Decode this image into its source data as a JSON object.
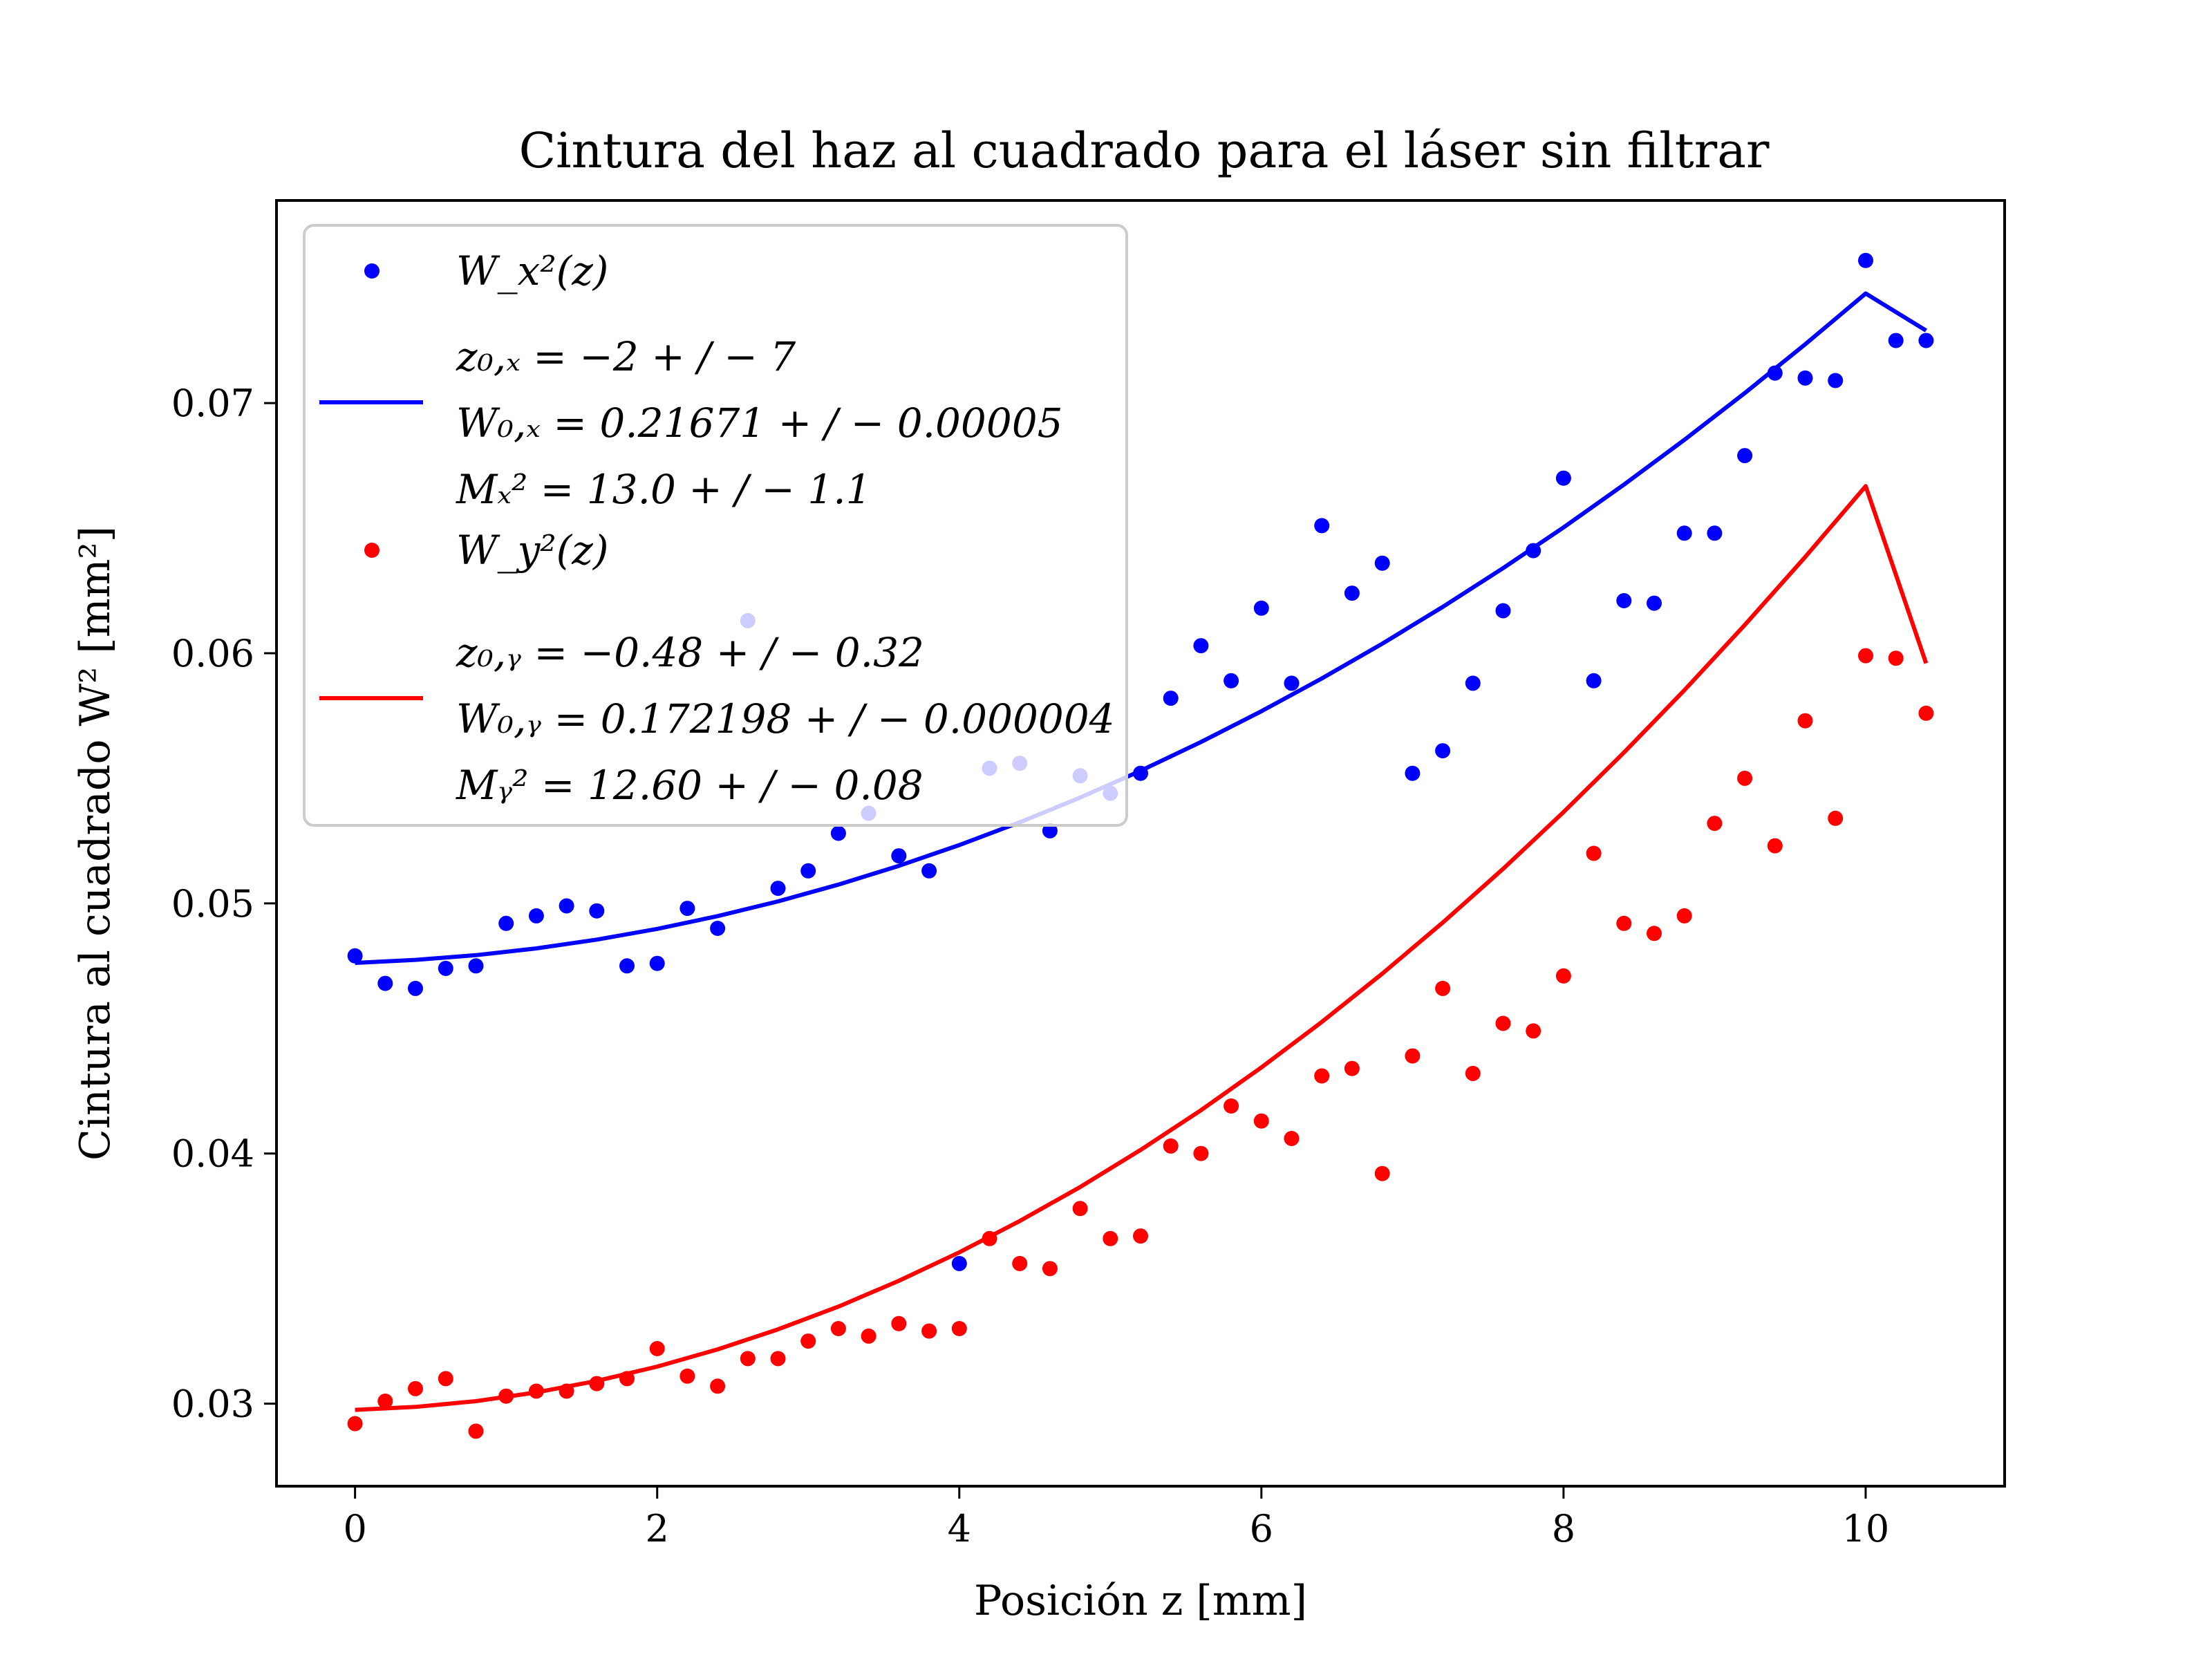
{
  "chart_data": {
    "type": "scatter",
    "title": "Cintura del haz al cuadrado para el láser sin filtrar",
    "xlabel": "Posición z [mm]",
    "ylabel": "Cintura al cuadrado W² [mm²]",
    "xlim": [
      -0.52,
      10.92
    ],
    "ylim": [
      0.0267,
      0.0781
    ],
    "xticks": [
      0,
      2,
      4,
      6,
      8,
      10
    ],
    "xtick_labels": [
      "0",
      "2",
      "4",
      "6",
      "8",
      "10"
    ],
    "yticks": [
      0.03,
      0.04,
      0.05,
      0.06,
      0.07
    ],
    "ytick_labels": [
      "0.03",
      "0.04",
      "0.05",
      "0.06",
      "0.07"
    ],
    "grid": false,
    "legend_position": "upper-left",
    "legend": [
      {
        "kind": "marker",
        "color": "#0000ff",
        "text": "W_x²(z)"
      },
      {
        "kind": "line",
        "color": "#0000ff",
        "lines": [
          "z₀,ₓ = −2 + / − 7",
          "W₀,ₓ = 0.21671 + / − 0.00005",
          "Mₓ² = 13.0 + / − 1.1"
        ]
      },
      {
        "kind": "marker",
        "color": "#ff0000",
        "text": "W_y²(z)"
      },
      {
        "kind": "line",
        "color": "#ff0000",
        "lines": [
          "z₀,ᵧ = −0.48 + / − 0.32",
          "W₀,ᵧ = 0.172198 + / − 0.000004",
          "Mᵧ² = 12.60 + / − 0.08"
        ]
      }
    ],
    "series": [
      {
        "kind": "points",
        "color": "#0000ff",
        "x": [
          0,
          0.2,
          0.4,
          0.6,
          0.8,
          1.0,
          1.2,
          1.4,
          1.6,
          1.8,
          2.0,
          2.2,
          2.4,
          2.6,
          2.8,
          3.0,
          3.2,
          3.4,
          3.6,
          3.8,
          4.2,
          4.4,
          4.6,
          4.8,
          5.0,
          5.2,
          5.4,
          5.6,
          5.8,
          6.0,
          6.2,
          6.4,
          6.6,
          6.8,
          7.0,
          7.2,
          7.4,
          7.6,
          7.8,
          8.0,
          8.2,
          8.4,
          8.6,
          8.8,
          9.0,
          9.2,
          9.4,
          9.6,
          9.8,
          10.0,
          10.2,
          10.4
        ],
        "y": [
          0.0479,
          0.0468,
          0.0466,
          0.0474,
          0.0475,
          0.0492,
          0.0495,
          0.0499,
          0.0497,
          0.0475,
          0.0476,
          0.0498,
          0.049,
          0.0613,
          0.0506,
          0.0513,
          0.0528,
          0.0536,
          0.0519,
          0.0513,
          0.0554,
          0.0556,
          0.0529,
          0.0551,
          0.0544,
          0.0552,
          0.0582,
          0.0603,
          0.0589,
          0.0618,
          0.0588,
          0.0651,
          0.0624,
          0.0636,
          0.0552,
          0.0561,
          0.0588,
          0.0617,
          0.0641,
          0.067,
          0.0589,
          0.0621,
          0.062,
          0.0648,
          0.0648,
          0.0679,
          0.0712,
          0.071,
          0.0709,
          0.0757,
          0.0725,
          0.0725
        ]
      },
      {
        "kind": "curve",
        "color": "#0000ff",
        "x": [
          0,
          0.4,
          0.8,
          1.2,
          1.6,
          2.0,
          2.4,
          2.8,
          3.2,
          3.6,
          4.0,
          4.4,
          4.8,
          5.2,
          5.6,
          6.0,
          6.4,
          6.8,
          7.2,
          7.6,
          8.0,
          8.4,
          8.8,
          9.2,
          9.6,
          10.0,
          10.4
        ],
        "y": [
          0.04762,
          0.04774,
          0.04793,
          0.0482,
          0.04855,
          0.04898,
          0.04949,
          0.05008,
          0.05075,
          0.0515,
          0.05233,
          0.05324,
          0.05423,
          0.0553,
          0.05645,
          0.05768,
          0.05899,
          0.06038,
          0.06185,
          0.0634,
          0.06503,
          0.06674,
          0.06853,
          0.0704,
          0.07235,
          0.07438,
          0.0729
        ]
      },
      {
        "kind": "points",
        "color": "#ff0000",
        "x": [
          0,
          0.2,
          0.4,
          0.6,
          0.8,
          1.0,
          1.2,
          1.4,
          1.6,
          1.8,
          2.0,
          2.2,
          2.4,
          2.6,
          2.8,
          3.0,
          3.2,
          3.4,
          3.6,
          3.8,
          4.0,
          4.2,
          4.4,
          4.6,
          4.8,
          5.0,
          5.2,
          5.4,
          5.6,
          5.8,
          6.0,
          6.2,
          6.4,
          6.6,
          6.8,
          7.0,
          7.2,
          7.4,
          7.6,
          7.8,
          8.0,
          8.2,
          8.4,
          8.6,
          8.8,
          9.0,
          9.2,
          9.4,
          9.6,
          9.8,
          10.0,
          10.2,
          10.4
        ],
        "y": [
          0.0292,
          0.0301,
          0.0306,
          0.031,
          0.0289,
          0.0303,
          0.0305,
          0.0305,
          0.0308,
          0.031,
          0.0322,
          0.0311,
          0.0307,
          0.0318,
          0.0318,
          0.0325,
          0.033,
          0.0327,
          0.0332,
          0.0329,
          0.033,
          0.0366,
          0.0356,
          0.0354,
          0.0378,
          0.0366,
          0.0367,
          0.0403,
          0.04,
          0.0419,
          0.0413,
          0.0406,
          0.0431,
          0.0434,
          0.0392,
          0.0439,
          0.0466,
          0.0432,
          0.0452,
          0.0449,
          0.0471,
          0.052,
          0.0492,
          0.0488,
          0.0495,
          0.0532,
          0.055,
          0.0523,
          0.0573,
          0.0534,
          0.0599,
          0.0598,
          0.0576
        ]
      },
      {
        "kind": "points",
        "color": "#0000ff",
        "x": [
          4.0
        ],
        "y": [
          0.0356
        ]
      },
      {
        "kind": "curve",
        "color": "#ff0000",
        "x": [
          0,
          0.4,
          0.8,
          1.2,
          1.6,
          2.0,
          2.4,
          2.8,
          3.2,
          3.6,
          4.0,
          4.4,
          4.8,
          5.2,
          5.6,
          6.0,
          6.4,
          6.8,
          7.2,
          7.6,
          8.0,
          8.4,
          8.8,
          9.2,
          9.6,
          10.0,
          10.4
        ],
        "y": [
          0.02975,
          0.02987,
          0.0301,
          0.03045,
          0.03091,
          0.03148,
          0.03217,
          0.03297,
          0.03388,
          0.03491,
          0.03605,
          0.0373,
          0.03866,
          0.04014,
          0.04173,
          0.04344,
          0.04526,
          0.04719,
          0.04923,
          0.05138,
          0.05365,
          0.05603,
          0.05852,
          0.06113,
          0.06385,
          0.06668,
          0.0596
        ]
      }
    ]
  }
}
